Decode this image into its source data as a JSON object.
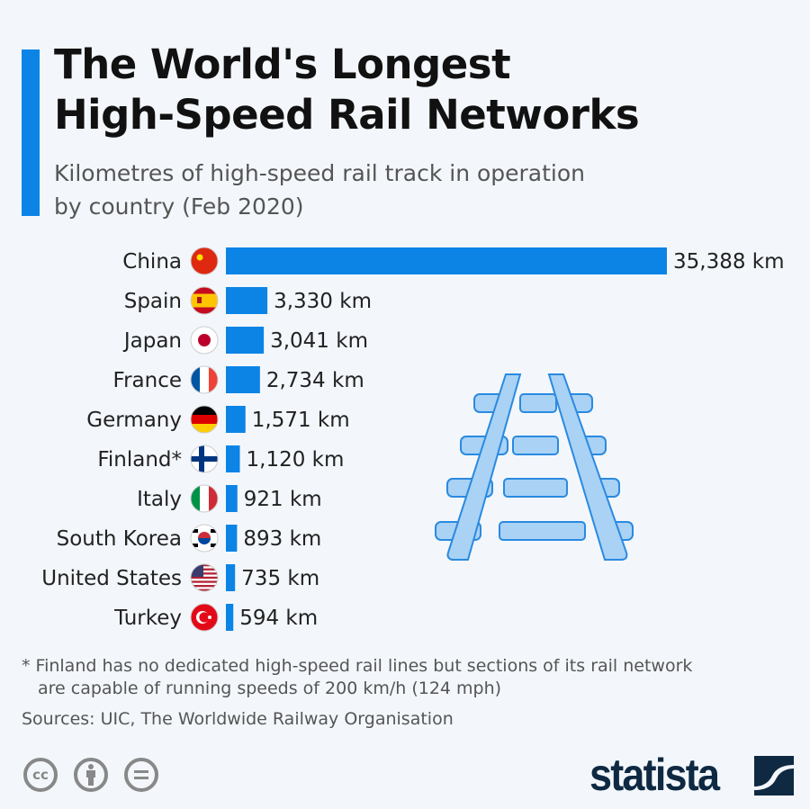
{
  "title_line1": "The World's Longest",
  "title_line2": "High-Speed Rail Networks",
  "subtitle_line1": "Kilometres of high-speed rail track in operation",
  "subtitle_line2": "by country (Feb 2020)",
  "colors": {
    "bar": "#0b84e6",
    "accent": "#0b84e6",
    "background": "#f3f7fb",
    "rail_icon": "#a9d2f5"
  },
  "chart_data": {
    "type": "bar",
    "orientation": "horizontal",
    "categories": [
      "China",
      "Spain",
      "Japan",
      "France",
      "Germany",
      "Finland*",
      "Italy",
      "South Korea",
      "United States",
      "Turkey"
    ],
    "values": [
      35388,
      3330,
      3041,
      2734,
      1571,
      1120,
      921,
      893,
      735,
      594
    ],
    "value_labels": [
      "35,388 km",
      "3,330 km",
      "3,041 km",
      "2,734 km",
      "1,571 km",
      "1,120 km",
      "921 km",
      "893 km",
      "735 km",
      "594 km"
    ],
    "flags": [
      "china",
      "spain",
      "japan",
      "france",
      "germany",
      "finland",
      "italy",
      "south-korea",
      "united-states",
      "turkey"
    ],
    "unit": "km",
    "grid": false
  },
  "footnote_line1": "* Finland has no dedicated high-speed rail lines but sections of its rail network",
  "footnote_line2": "are capable of running speeds of 200 km/h (124 mph)",
  "sources": "Sources: UIC, The Worldwide Railway Organisation",
  "license_icons": [
    "cc-icon",
    "by-icon",
    "nd-icon"
  ],
  "logo": "statista"
}
